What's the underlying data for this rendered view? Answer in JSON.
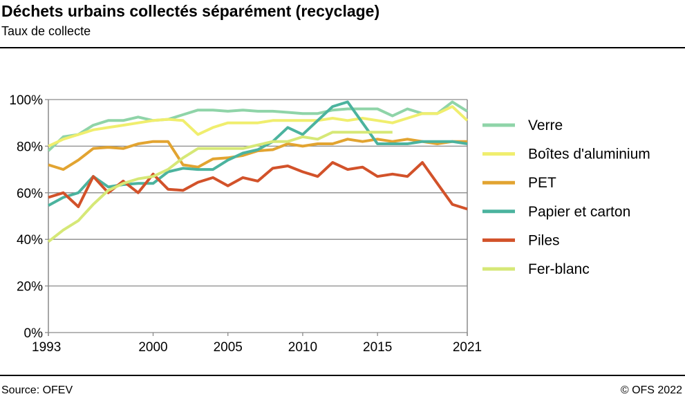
{
  "title": "Déchets urbains collectés séparément (recyclage)",
  "subtitle": "Taux de collecte",
  "source": "Source: OFEV",
  "copyright": "© OFS 2022",
  "chart_data": {
    "type": "line",
    "title": "Déchets urbains collectés séparément (recyclage)",
    "subtitle": "Taux de collecte",
    "xlim": [
      1993,
      2021
    ],
    "ylim": [
      0,
      100
    ],
    "x_ticks": [
      "1993",
      "2000",
      "2005",
      "2010",
      "2015",
      "2021"
    ],
    "y_ticks": [
      "0%",
      "20%",
      "40%",
      "60%",
      "80%",
      "100%"
    ],
    "grid": "horizontal",
    "legend": "right",
    "x": [
      1993,
      1994,
      1995,
      1996,
      1997,
      1998,
      1999,
      2000,
      2001,
      2002,
      2003,
      2004,
      2005,
      2006,
      2007,
      2008,
      2009,
      2010,
      2011,
      2012,
      2013,
      2014,
      2015,
      2016,
      2017,
      2018,
      2019,
      2020,
      2021
    ],
    "series": [
      {
        "name": "Verre",
        "color": "#8fd4a8",
        "values": [
          78,
          84,
          85,
          89,
          91,
          91,
          92.5,
          91,
          91.5,
          93.5,
          95.5,
          95.5,
          95,
          95.5,
          95,
          95,
          94.5,
          94,
          94,
          95.5,
          96,
          96,
          96,
          93,
          96,
          94,
          94,
          99,
          95
        ]
      },
      {
        "name": "Boîtes d'aluminium",
        "color": "#f0ee6e",
        "values": [
          80,
          83,
          85,
          87,
          88,
          89,
          90,
          91,
          91.5,
          91,
          85,
          88,
          90,
          90,
          90,
          91,
          91,
          91,
          91,
          92,
          91,
          92,
          91,
          90,
          92,
          94,
          94,
          97,
          91
        ]
      },
      {
        "name": "PET",
        "color": "#e2a431",
        "values": [
          72,
          70,
          74,
          79,
          79.5,
          79,
          81,
          82,
          82,
          72,
          71,
          74.5,
          75,
          76,
          78,
          78.5,
          81,
          80,
          81,
          81,
          83,
          82,
          83,
          82,
          83,
          82,
          81,
          82,
          82
        ]
      },
      {
        "name": "Papier et carton",
        "color": "#4bb39e",
        "values": [
          54.5,
          58,
          60,
          67,
          62.5,
          63.5,
          64,
          64,
          69,
          70.5,
          70,
          70,
          74,
          77,
          78.5,
          82,
          88,
          85,
          91,
          97,
          99,
          90,
          81,
          81,
          81,
          82,
          82,
          82,
          81
        ]
      },
      {
        "name": "Piles",
        "color": "#d2522a",
        "values": [
          58,
          60,
          54,
          67,
          60,
          65,
          60,
          68,
          61.5,
          61,
          64.5,
          66.5,
          63,
          66.5,
          65,
          70.5,
          71.5,
          69,
          67,
          73,
          70,
          71,
          67,
          68,
          67,
          73,
          64,
          55,
          53
        ]
      },
      {
        "name": "Fer-blanc",
        "color": "#d6e877",
        "values": [
          39,
          44,
          48,
          55,
          61,
          64,
          66,
          67,
          70,
          75,
          79,
          79,
          79,
          79,
          80.5,
          82,
          82,
          84,
          83,
          86,
          86,
          86,
          86,
          86,
          null,
          null,
          null,
          null,
          null
        ]
      }
    ]
  }
}
